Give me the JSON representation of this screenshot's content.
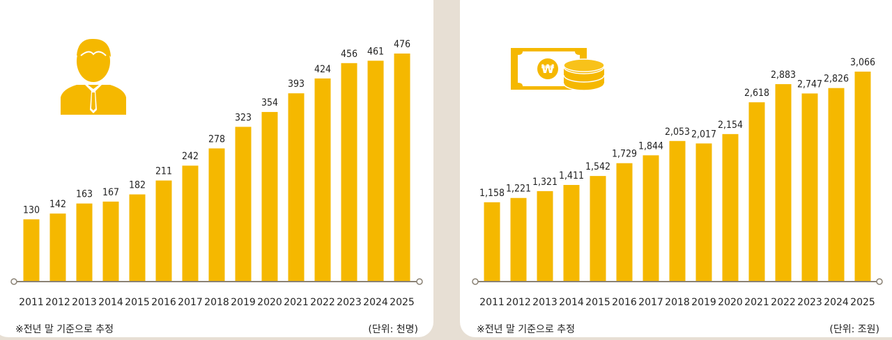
{
  "chart_data": [
    {
      "type": "bar",
      "icon": "person-icon",
      "categories": [
        "2011",
        "2012",
        "2013",
        "2014",
        "2015",
        "2016",
        "2017",
        "2018",
        "2019",
        "2020",
        "2021",
        "2022",
        "2023",
        "2024",
        "2025"
      ],
      "values": [
        130,
        142,
        163,
        167,
        182,
        211,
        242,
        278,
        323,
        354,
        393,
        424,
        456,
        461,
        476
      ],
      "value_labels": [
        "130",
        "142",
        "163",
        "167",
        "182",
        "211",
        "242",
        "278",
        "323",
        "354",
        "393",
        "424",
        "456",
        "461",
        "476"
      ],
      "footnote": "※전년 말 기준으로 추정",
      "unit": "(단위: 천명)",
      "ylim": [
        0,
        476
      ],
      "grid": false
    },
    {
      "type": "bar",
      "icon": "money-icon",
      "categories": [
        "2011",
        "2012",
        "2013",
        "2014",
        "2015",
        "2016",
        "2017",
        "2018",
        "2019",
        "2020",
        "2021",
        "2022",
        "2023",
        "2024",
        "2025"
      ],
      "values": [
        1158,
        1221,
        1321,
        1411,
        1542,
        1729,
        1844,
        2053,
        2017,
        2154,
        2618,
        2883,
        2747,
        2826,
        3066
      ],
      "value_labels": [
        "1,158",
        "1,221",
        "1,321",
        "1,411",
        "1,542",
        "1,729",
        "1,844",
        "2,053",
        "2,017",
        "2,154",
        "2,618",
        "2,883",
        "2,747",
        "2,826",
        "3,066"
      ],
      "footnote": "※전년 말 기준으로 추정",
      "unit": "(단위: 조원)",
      "ylim": [
        0,
        3066
      ],
      "grid": false
    }
  ],
  "colors": {
    "bar": "#f5b800",
    "axis": "#8a8275",
    "background": "#e7dfd4"
  },
  "currency_symbol": "₩"
}
